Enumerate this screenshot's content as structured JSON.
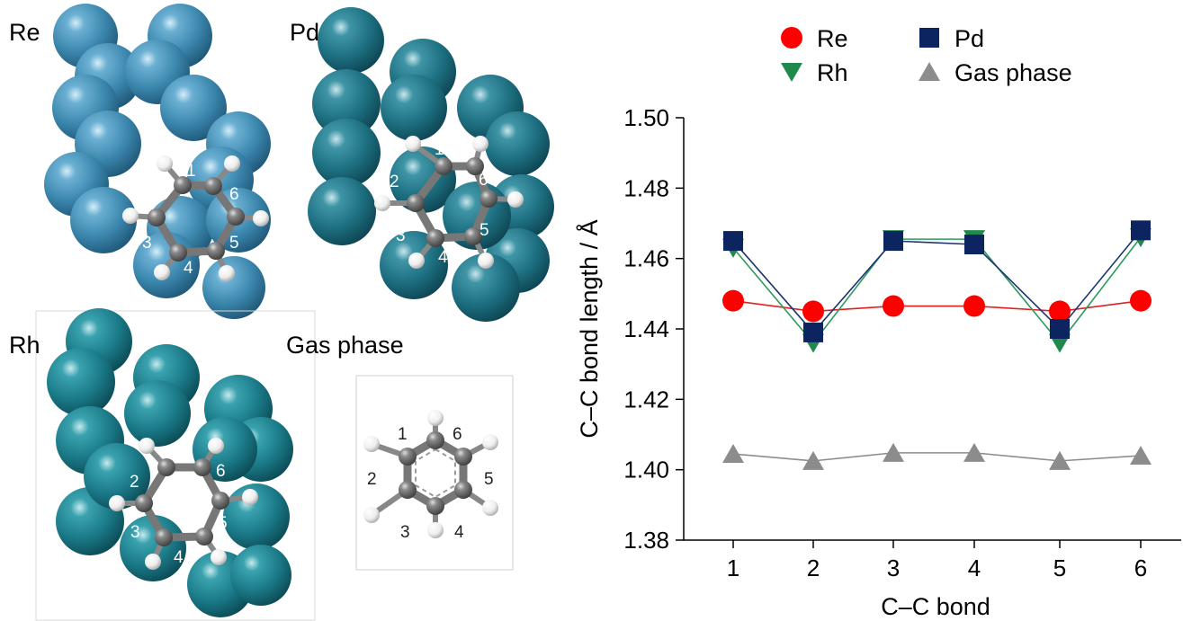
{
  "panels": {
    "re_label": "Re",
    "pd_label": "Pd",
    "rh_label": "Rh",
    "gas_label": "Gas phase",
    "bond_numbers": [
      "1",
      "2",
      "3",
      "4",
      "5",
      "6"
    ]
  },
  "colors": {
    "re_metal": "#3b86ad",
    "pd_metal": "#1d6f80",
    "rh_metal": "#1b7a88",
    "carbon": "#6e6e6e",
    "hydrogen": "#f2f2f2"
  },
  "chart_data": {
    "type": "line",
    "categories": [
      "1",
      "2",
      "3",
      "4",
      "5",
      "6"
    ],
    "xlabel": "C–C bond",
    "ylabel": "C–C bond length / Å",
    "ylim": [
      1.38,
      1.5
    ],
    "yticks": [
      "1.38",
      "1.40",
      "1.42",
      "1.44",
      "1.46",
      "1.48",
      "1.50"
    ],
    "grid": false,
    "legend_position": "top",
    "series": [
      {
        "name": "Re",
        "marker": "circle",
        "color": "#ff0000",
        "line_color": "#e02020",
        "values": [
          1.448,
          1.445,
          1.4465,
          1.4465,
          1.445,
          1.448
        ]
      },
      {
        "name": "Rh",
        "marker": "triangle-down",
        "color": "#1f8a4c",
        "line_color": "#2e9a5e",
        "values": [
          1.463,
          1.436,
          1.4655,
          1.4655,
          1.436,
          1.466
        ]
      },
      {
        "name": "Pd",
        "marker": "square",
        "color": "#0c2560",
        "line_color": "#1c3570",
        "values": [
          1.465,
          1.439,
          1.465,
          1.464,
          1.44,
          1.468
        ]
      },
      {
        "name": "Gas phase",
        "marker": "triangle-up",
        "color": "#8c8c8c",
        "line_color": "#8c8c8c",
        "values": [
          1.4045,
          1.4025,
          1.4048,
          1.4048,
          1.4025,
          1.404
        ]
      }
    ]
  }
}
